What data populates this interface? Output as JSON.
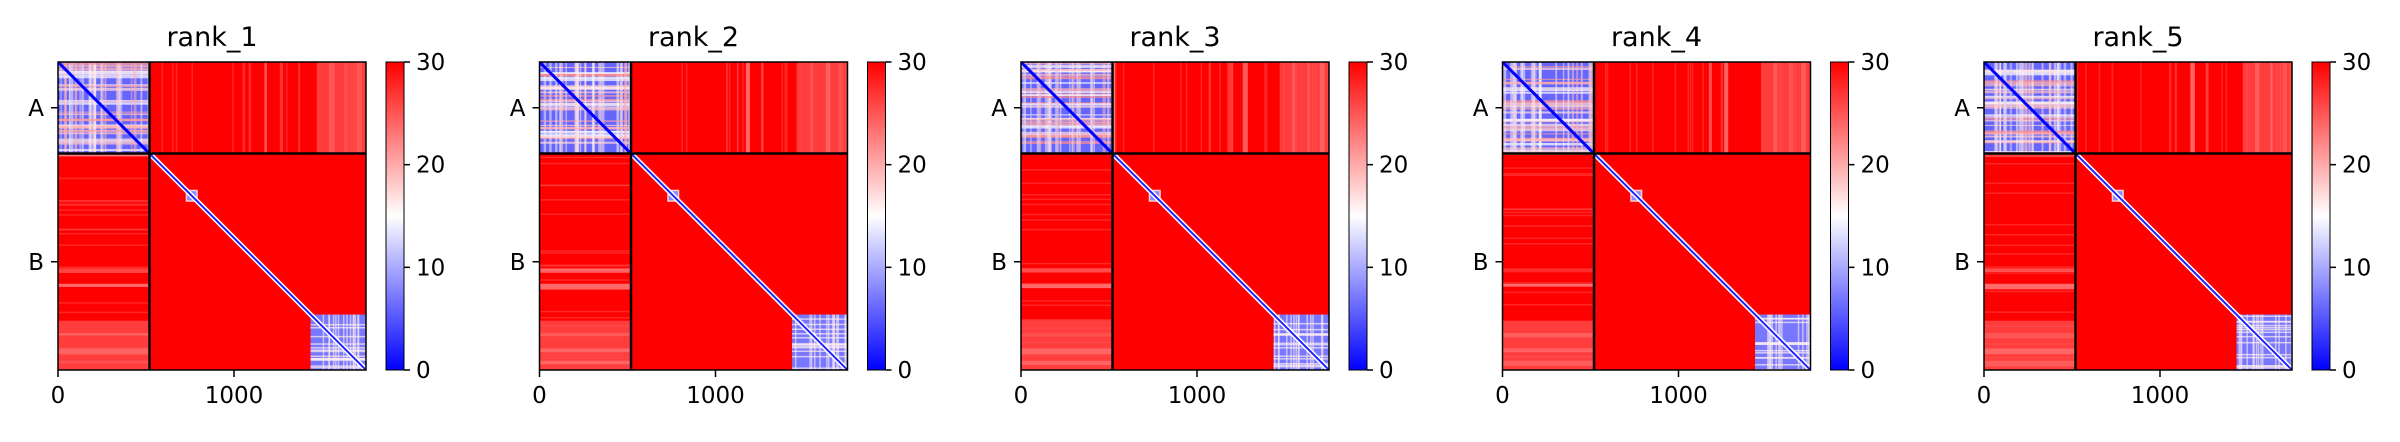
{
  "chart_data": {
    "type": "heatmap",
    "colormap": {
      "name": "bwr",
      "colors": [
        "#0000ff",
        "#ffffff",
        "#ff0000"
      ],
      "vmin": 0,
      "vmax": 30,
      "ticks": [
        0,
        10,
        20,
        30
      ]
    },
    "grid": false,
    "shared": {
      "chains": [
        "A",
        "B"
      ],
      "chain_boundary": 520,
      "matrix_size": 1750,
      "x_ticks": [
        0,
        1000
      ],
      "xlim": [
        0,
        1750
      ]
    },
    "panels": [
      {
        "title": "rank_1"
      },
      {
        "title": "rank_2"
      },
      {
        "title": "rank_3"
      },
      {
        "title": "rank_4"
      },
      {
        "title": "rank_5"
      }
    ]
  }
}
